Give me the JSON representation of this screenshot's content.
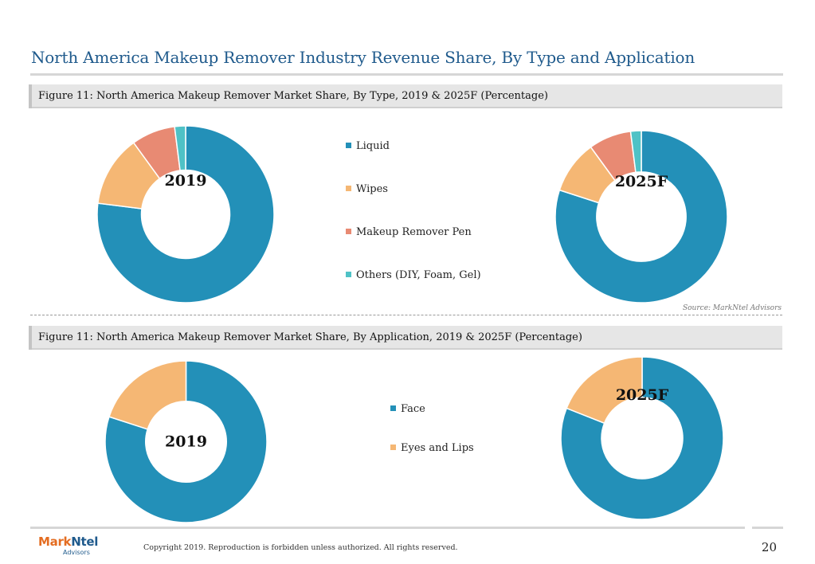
{
  "page": {
    "title": "North America Makeup Remover Industry Revenue Share, By Type and Application",
    "source": "Source: MarkNtel Advisors",
    "copyright": "Copyright 2019. Reproduction is forbidden unless authorized. All rights reserved.",
    "page_number": "20",
    "logo": {
      "mark": "Mark",
      "ntel": "Ntel",
      "sub": "Advisors"
    }
  },
  "colors": {
    "liquid": "#2390b8",
    "wipes": "#f5b774",
    "makeup_remover_pen": "#e88a73",
    "others": "#4fc2c6",
    "face": "#2390b8",
    "eyes_and_lips": "#f5b774"
  },
  "chart_data": [
    {
      "type": "pie",
      "variant": "donut",
      "title": "Figure 11: North America Makeup Remover Market Share, By Type, 2019 & 2025F (Percentage)",
      "categories": [
        "Liquid",
        "Wipes",
        "Makeup Remover Pen",
        "Others (DIY, Foam, Gel)"
      ],
      "colors": [
        "#2390b8",
        "#f5b774",
        "#e88a73",
        "#4fc2c6"
      ],
      "legend_position": "center",
      "series": [
        {
          "name": "2019",
          "values": [
            77,
            13,
            8,
            2
          ]
        },
        {
          "name": "2025F",
          "values": [
            80,
            10,
            8,
            2
          ]
        }
      ]
    },
    {
      "type": "pie",
      "variant": "donut",
      "title": "Figure 11: North America Makeup Remover Market Share, By Application, 2019 & 2025F (Percentage)",
      "categories": [
        "Face",
        "Eyes and Lips"
      ],
      "colors": [
        "#2390b8",
        "#f5b774"
      ],
      "legend_position": "center",
      "series": [
        {
          "name": "2019",
          "values": [
            80,
            20
          ]
        },
        {
          "name": "2025F",
          "values": [
            81,
            19
          ]
        }
      ]
    }
  ]
}
